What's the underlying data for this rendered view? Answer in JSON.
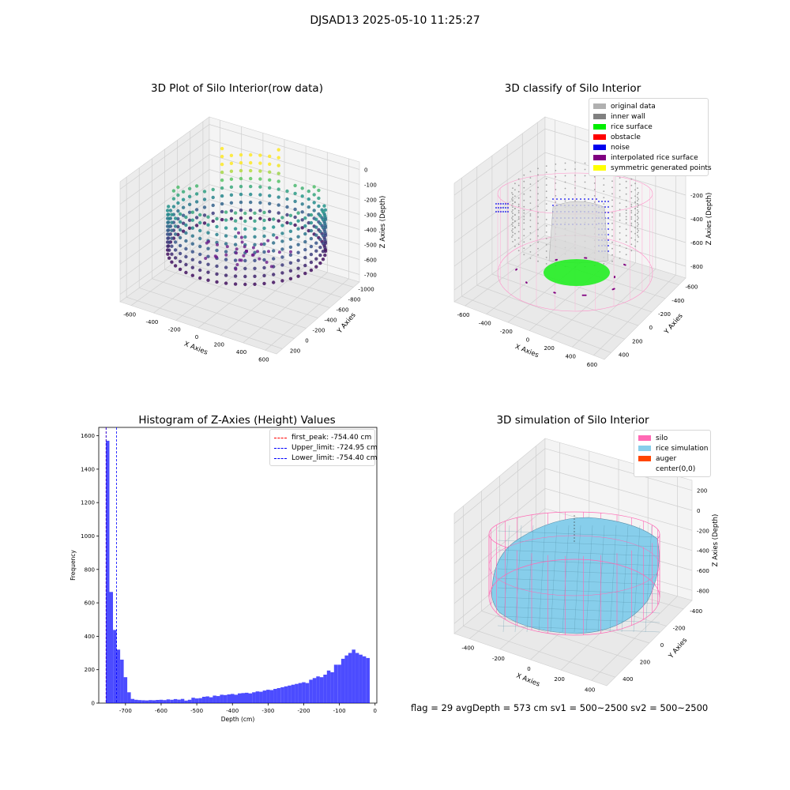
{
  "suptitle": "DJSAD13 2025-05-10 11:25:27",
  "status": "flag = 29  avgDepth = 573 cm  sv1 = 500~2500  sv2 = 500~2500",
  "chart_data": [
    {
      "type": "scatter",
      "title": "3D Plot of Silo Interior(row data)",
      "xlabel": "X Axies",
      "ylabel": "Y Axies",
      "zlabel": "Z Axies (Depth)",
      "x_ticks": [
        "-600",
        "-400",
        "-200",
        "0",
        "200",
        "400",
        "600"
      ],
      "y_ticks": [
        "-1000",
        "-800",
        "-600",
        "-400",
        "-200",
        "0",
        "200"
      ],
      "z_ticks": [
        "0",
        "-100",
        "-200",
        "-300",
        "-400",
        "-500",
        "-600",
        "-700"
      ],
      "colormap": "viridis"
    },
    {
      "type": "scatter",
      "title": "3D classify of Silo Interior",
      "xlabel": "X Axies",
      "ylabel": "Y Axies",
      "zlabel": "Z Axies (Depth)",
      "x_ticks": [
        "-600",
        "-400",
        "-200",
        "0",
        "200",
        "400",
        "600"
      ],
      "y_ticks": [
        "-600",
        "-400",
        "-200",
        "0",
        "200",
        "400"
      ],
      "z_ticks": [
        "0",
        "-200",
        "-400",
        "-600",
        "-800"
      ],
      "legend": [
        {
          "name": "original data",
          "color": "#b0b0b0"
        },
        {
          "name": "inner wall",
          "color": "#808080"
        },
        {
          "name": "rice surface",
          "color": "#00ee00"
        },
        {
          "name": "obstacle",
          "color": "#ff0000"
        },
        {
          "name": "noise",
          "color": "#0000ee"
        },
        {
          "name": "interpolated rice surface",
          "color": "#800080"
        },
        {
          "name": "symmetric generated points",
          "color": "#ffff00"
        }
      ],
      "legend_position": "top-right"
    },
    {
      "type": "bar",
      "title": "Histogram of Z-Axies (Height) Values",
      "xlabel": "Depth (cm)",
      "ylabel": "Frequency",
      "xlim": [
        -775,
        5
      ],
      "ylim": [
        0,
        1650
      ],
      "x_ticks": [
        "-700",
        "-600",
        "-500",
        "-400",
        "-300",
        "-200",
        "-100",
        "0"
      ],
      "y_ticks": [
        "0",
        "200",
        "400",
        "600",
        "800",
        "1000",
        "1200",
        "1400",
        "1600"
      ],
      "bar_color": "#0000ff",
      "bins": [
        {
          "x0": -755,
          "x1": -745,
          "v": 1570
        },
        {
          "x0": -745,
          "x1": -735,
          "v": 665
        },
        {
          "x0": -735,
          "x1": -725,
          "v": 438
        },
        {
          "x0": -725,
          "x1": -715,
          "v": 320
        },
        {
          "x0": -715,
          "x1": -705,
          "v": 260
        },
        {
          "x0": -705,
          "x1": -695,
          "v": 155
        },
        {
          "x0": -695,
          "x1": -685,
          "v": 65
        },
        {
          "x0": -685,
          "x1": -675,
          "v": 25
        },
        {
          "x0": -675,
          "x1": -665,
          "v": 20
        },
        {
          "x0": -665,
          "x1": -655,
          "v": 18
        },
        {
          "x0": -655,
          "x1": -645,
          "v": 17
        },
        {
          "x0": -645,
          "x1": -635,
          "v": 16
        },
        {
          "x0": -635,
          "x1": -625,
          "v": 18
        },
        {
          "x0": -625,
          "x1": -615,
          "v": 17
        },
        {
          "x0": -615,
          "x1": -605,
          "v": 19
        },
        {
          "x0": -605,
          "x1": -595,
          "v": 20
        },
        {
          "x0": -595,
          "x1": -585,
          "v": 18
        },
        {
          "x0": -585,
          "x1": -575,
          "v": 22
        },
        {
          "x0": -575,
          "x1": -565,
          "v": 20
        },
        {
          "x0": -565,
          "x1": -555,
          "v": 24
        },
        {
          "x0": -555,
          "x1": -545,
          "v": 21
        },
        {
          "x0": -545,
          "x1": -535,
          "v": 25
        },
        {
          "x0": -535,
          "x1": -525,
          "v": 15
        },
        {
          "x0": -525,
          "x1": -515,
          "v": 20
        },
        {
          "x0": -515,
          "x1": -505,
          "v": 32
        },
        {
          "x0": -505,
          "x1": -495,
          "v": 28
        },
        {
          "x0": -495,
          "x1": -485,
          "v": 30
        },
        {
          "x0": -485,
          "x1": -475,
          "v": 38
        },
        {
          "x0": -475,
          "x1": -465,
          "v": 40
        },
        {
          "x0": -465,
          "x1": -455,
          "v": 35
        },
        {
          "x0": -455,
          "x1": -445,
          "v": 45
        },
        {
          "x0": -445,
          "x1": -435,
          "v": 42
        },
        {
          "x0": -435,
          "x1": -425,
          "v": 50
        },
        {
          "x0": -425,
          "x1": -415,
          "v": 48
        },
        {
          "x0": -415,
          "x1": -405,
          "v": 52
        },
        {
          "x0": -405,
          "x1": -395,
          "v": 55
        },
        {
          "x0": -395,
          "x1": -385,
          "v": 50
        },
        {
          "x0": -385,
          "x1": -375,
          "v": 58
        },
        {
          "x0": -375,
          "x1": -365,
          "v": 60
        },
        {
          "x0": -365,
          "x1": -355,
          "v": 62
        },
        {
          "x0": -355,
          "x1": -345,
          "v": 58
        },
        {
          "x0": -345,
          "x1": -335,
          "v": 65
        },
        {
          "x0": -335,
          "x1": -325,
          "v": 70
        },
        {
          "x0": -325,
          "x1": -315,
          "v": 68
        },
        {
          "x0": -315,
          "x1": -305,
          "v": 75
        },
        {
          "x0": -305,
          "x1": -295,
          "v": 80
        },
        {
          "x0": -295,
          "x1": -285,
          "v": 78
        },
        {
          "x0": -285,
          "x1": -275,
          "v": 85
        },
        {
          "x0": -275,
          "x1": -265,
          "v": 90
        },
        {
          "x0": -265,
          "x1": -255,
          "v": 95
        },
        {
          "x0": -255,
          "x1": -245,
          "v": 100
        },
        {
          "x0": -245,
          "x1": -235,
          "v": 105
        },
        {
          "x0": -235,
          "x1": -225,
          "v": 110
        },
        {
          "x0": -225,
          "x1": -215,
          "v": 115
        },
        {
          "x0": -215,
          "x1": -205,
          "v": 120
        },
        {
          "x0": -205,
          "x1": -195,
          "v": 125
        },
        {
          "x0": -195,
          "x1": -185,
          "v": 120
        },
        {
          "x0": -185,
          "x1": -175,
          "v": 140
        },
        {
          "x0": -175,
          "x1": -165,
          "v": 150
        },
        {
          "x0": -165,
          "x1": -155,
          "v": 160
        },
        {
          "x0": -155,
          "x1": -145,
          "v": 155
        },
        {
          "x0": -145,
          "x1": -135,
          "v": 170
        },
        {
          "x0": -135,
          "x1": -125,
          "v": 195
        },
        {
          "x0": -125,
          "x1": -115,
          "v": 185
        },
        {
          "x0": -115,
          "x1": -105,
          "v": 230
        },
        {
          "x0": -105,
          "x1": -95,
          "v": 230
        },
        {
          "x0": -95,
          "x1": -85,
          "v": 265
        },
        {
          "x0": -85,
          "x1": -75,
          "v": 285
        },
        {
          "x0": -75,
          "x1": -65,
          "v": 300
        },
        {
          "x0": -65,
          "x1": -55,
          "v": 320
        },
        {
          "x0": -55,
          "x1": -45,
          "v": 300
        },
        {
          "x0": -45,
          "x1": -35,
          "v": 290
        },
        {
          "x0": -35,
          "x1": -25,
          "v": 280
        },
        {
          "x0": -25,
          "x1": -15,
          "v": 270
        }
      ],
      "vlines": [
        {
          "label": "first_peak: -754.40 cm",
          "x": -754.4,
          "color": "#ff0000"
        },
        {
          "label": "Upper_limit: -724.95 cm",
          "x": -724.95,
          "color": "#0000ff"
        },
        {
          "label": "Lower_limit: -754.40 cm",
          "x": -754.4,
          "color": "#0000ff"
        }
      ],
      "legend_position": "top-right"
    },
    {
      "type": "surface",
      "title": "3D simulation of Silo Interior",
      "xlabel": "X Axies",
      "ylabel": "Y Axies",
      "zlabel": "Z Axies (Depth)",
      "x_ticks": [
        "-400",
        "-200",
        "0",
        "200",
        "400"
      ],
      "y_ticks": [
        "-400",
        "-200",
        "0",
        "200",
        "400"
      ],
      "z_ticks": [
        "200",
        "0",
        "-200",
        "-400",
        "-600",
        "-800"
      ],
      "legend": [
        {
          "name": "silo",
          "color": "#ff69b4"
        },
        {
          "name": "rice simulation",
          "color": "#87ceeb"
        },
        {
          "name": "auger",
          "color": "#ff4500"
        },
        {
          "name": "center(0,0)",
          "color": "#ffffff"
        }
      ],
      "legend_position": "top-right"
    }
  ]
}
